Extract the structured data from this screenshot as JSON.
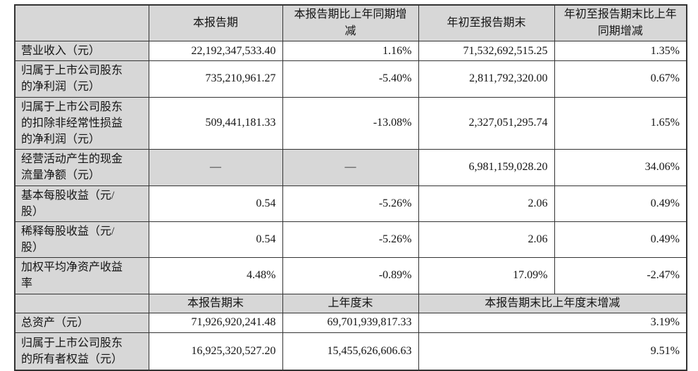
{
  "colors": {
    "shade": "#d7d7d7",
    "border": "#333333",
    "text": "#141414",
    "background": "#ffffff"
  },
  "table": {
    "header_row1": {
      "corner": "",
      "cols": [
        "本报告期",
        "本报告期比上年同期增减",
        "年初至报告期末",
        "年初至报告期末比上年同期增减"
      ]
    },
    "main_rows": [
      {
        "label": "营业收入（元）",
        "values": [
          "22,192,347,533.40",
          "1.16%",
          "71,532,692,515.25",
          "1.35%"
        ]
      },
      {
        "label": "归属于上市公司股东的净利润（元）",
        "values": [
          "735,210,961.27",
          "-5.40%",
          "2,811,792,320.00",
          "0.67%"
        ]
      },
      {
        "label": "归属于上市公司股东的扣除非经常性损益的净利润（元）",
        "values": [
          "509,441,181.33",
          "-13.08%",
          "2,327,051,295.74",
          "1.65%"
        ]
      },
      {
        "label": "经营活动产生的现金流量净额（元）",
        "values": [
          "—",
          "—",
          "6,981,159,028.20",
          "34.06%"
        ]
      },
      {
        "label": "基本每股收益（元/股）",
        "values": [
          "0.54",
          "-5.26%",
          "2.06",
          "0.49%"
        ]
      },
      {
        "label": "稀释每股收益（元/股）",
        "values": [
          "0.54",
          "-5.26%",
          "2.06",
          "0.49%"
        ]
      },
      {
        "label": "加权平均净资产收益率",
        "values": [
          "4.48%",
          "-0.89%",
          "17.09%",
          "-2.47%"
        ]
      }
    ],
    "header_row2": {
      "corner": "",
      "cols": [
        "本报告期末",
        "上年度末",
        "本报告期末比上年度末增减"
      ]
    },
    "bottom_rows": [
      {
        "label": "总资产（元）",
        "values": [
          "71,926,920,241.48",
          "69,701,939,817.33",
          "3.19%"
        ]
      },
      {
        "label": "归属于上市公司股东的所有者权益（元）",
        "values": [
          "16,925,320,527.20",
          "15,455,626,606.63",
          "9.51%"
        ]
      }
    ],
    "dash_value": "—"
  }
}
